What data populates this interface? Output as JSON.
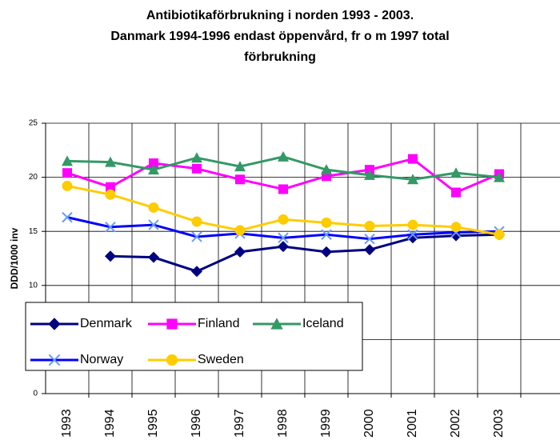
{
  "chart_data": {
    "type": "line",
    "title": [
      "Antibiotikaförbrukning i norden 1993 - 2003.",
      "Danmark 1994-1996 endast öppenvård, fr o m 1997 total",
      "förbrukning"
    ],
    "y_label": "DDD/1000 inv",
    "categories": [
      "1993",
      "1994",
      "1995",
      "1996",
      "1997",
      "1998",
      "1999",
      "2000",
      "2001",
      "2002",
      "2003",
      null
    ],
    "series": [
      {
        "name": "Denmark",
        "color": "#000080",
        "marker": "diamond",
        "values": [
          null,
          12.7,
          12.6,
          11.3,
          13.1,
          13.6,
          13.1,
          13.3,
          14.4,
          14.6,
          14.7,
          null
        ]
      },
      {
        "name": "Finland",
        "color": "#ff00ff",
        "marker": "square",
        "values": [
          20.4,
          19.1,
          21.3,
          20.8,
          19.8,
          18.9,
          20.1,
          20.7,
          21.7,
          18.6,
          20.3,
          null
        ]
      },
      {
        "name": "Iceland",
        "color": "#339966",
        "marker": "triangle",
        "values": [
          21.5,
          21.4,
          20.7,
          21.8,
          21.0,
          21.9,
          20.7,
          20.2,
          19.8,
          20.4,
          20.0,
          null
        ]
      },
      {
        "name": "Norway",
        "color": "#0000ff",
        "marker": "x",
        "marker_color": "#6699ff",
        "values": [
          16.3,
          15.4,
          15.6,
          14.5,
          14.8,
          14.4,
          14.7,
          14.3,
          14.7,
          14.9,
          15.0,
          null
        ]
      },
      {
        "name": "Sweden",
        "color": "#ffcc00",
        "marker": "circle",
        "values": [
          19.2,
          18.4,
          17.2,
          15.9,
          15.1,
          16.1,
          15.8,
          15.5,
          15.6,
          15.4,
          14.7,
          null
        ]
      }
    ],
    "ylim": [
      0,
      25
    ],
    "yticks": [
      0,
      5,
      10,
      15,
      20,
      25
    ],
    "grid": true
  }
}
